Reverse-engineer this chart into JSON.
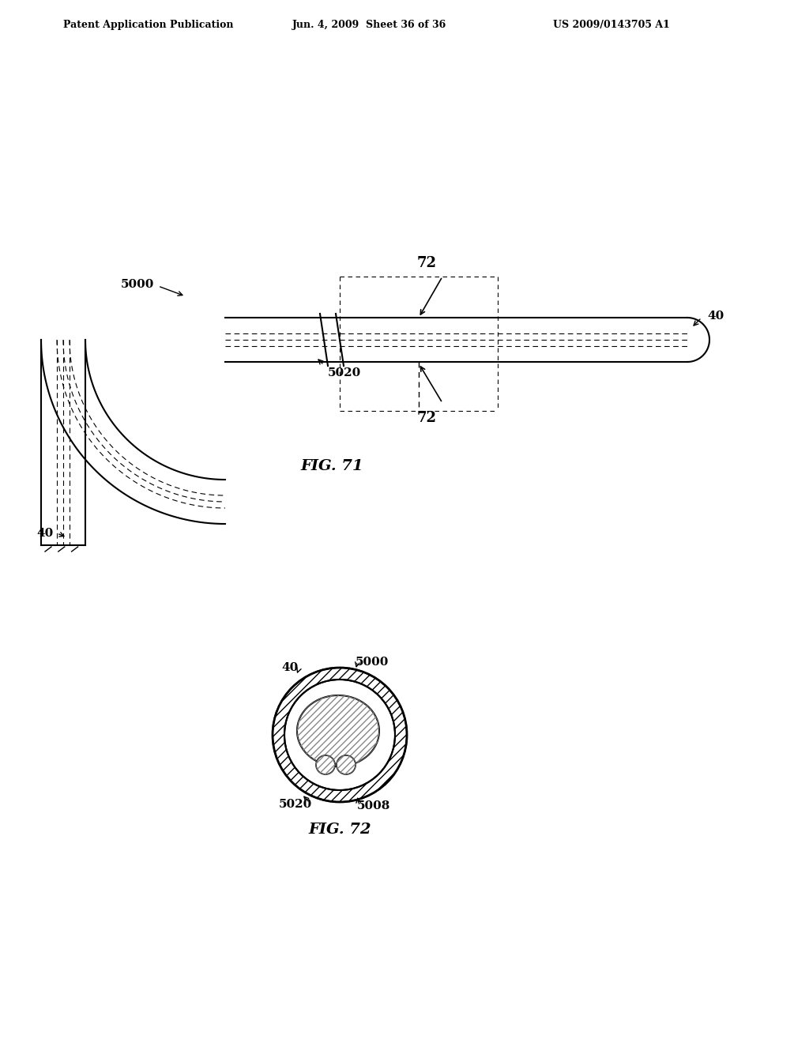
{
  "bg_color": "#ffffff",
  "header_left": "Patent Application Publication",
  "header_mid": "Jun. 4, 2009  Sheet 36 of 36",
  "header_right": "US 2009/0143705 A1",
  "fig71_label": "FIG. 71",
  "fig72_label": "FIG. 72",
  "label_color": "#000000",
  "line_color": "#000000",
  "hatch_color": "#555555"
}
